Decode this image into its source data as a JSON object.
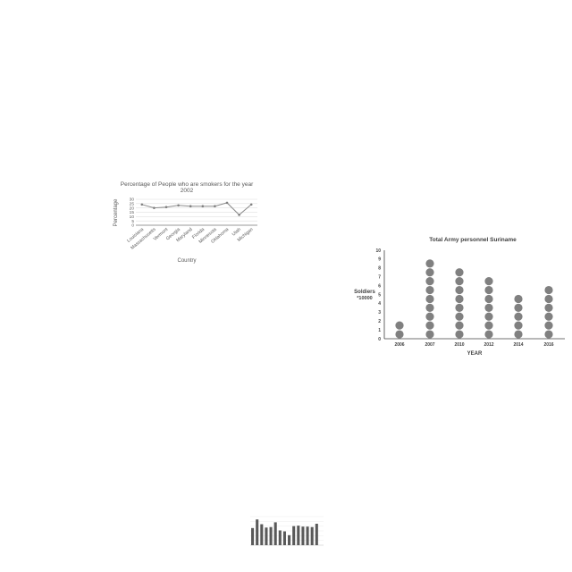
{
  "chart_data": [
    {
      "type": "line",
      "title": "Percentage of People who are smokers for the year 2002",
      "title_lines": [
        "Percentage of People who are smokers for the year",
        "2002"
      ],
      "xlabel": "Country",
      "ylabel": "Percentage",
      "categories": [
        "Louisiana",
        "Massachusetts",
        "Vermont",
        "Georgia",
        "Maryland",
        "Florida",
        "Minnesota",
        "Oklahoma",
        "Utah",
        "Michigan"
      ],
      "y_ticks": [
        "0",
        "5",
        "10",
        "15",
        "20",
        "25",
        "30"
      ],
      "ylim": [
        0,
        30
      ],
      "series": [
        {
          "values": [
            24,
            20,
            21,
            23,
            22,
            22,
            22,
            26,
            12,
            24
          ]
        }
      ],
      "grid": true,
      "colors": {
        "line": "#8c8c8c",
        "marker": "#808080",
        "grid": "#d9d9d9",
        "text": "#595959"
      }
    },
    {
      "type": "scatter",
      "subtype": "dot-plot",
      "title": "Total Army personnel Suriname",
      "xlabel": "YEAR",
      "ylabel": "Soldiers",
      "ylabel_unit": "*10000",
      "categories": [
        "2006",
        "2007",
        "2010",
        "2012",
        "2014",
        "2016"
      ],
      "values": [
        2,
        9,
        8,
        7,
        5,
        6
      ],
      "y_ticks": [
        "0",
        "1",
        "2",
        "3",
        "4",
        "5",
        "6",
        "7",
        "8",
        "9",
        "10"
      ],
      "ylim": [
        0,
        10
      ],
      "grid": false,
      "colors": {
        "dot": "#808080",
        "axis": "#404040",
        "text": "#404040"
      }
    },
    {
      "type": "bar",
      "title": "",
      "xlabel": "",
      "ylabel": "",
      "categories": [
        "",
        "",
        "",
        "",
        "",
        "",
        "",
        "",
        "",
        "",
        "",
        "",
        "",
        "",
        "",
        ""
      ],
      "values": [
        3.6,
        5.4,
        4.4,
        3.7,
        3.8,
        4.8,
        3.1,
        2.9,
        2.1,
        4.0,
        4.1,
        3.9,
        3.9,
        3.8,
        4.5,
        0
      ],
      "ylim": [
        0,
        6
      ],
      "grid": true,
      "colors": {
        "bar": "#595959",
        "grid": "#e0e0e0"
      }
    }
  ]
}
